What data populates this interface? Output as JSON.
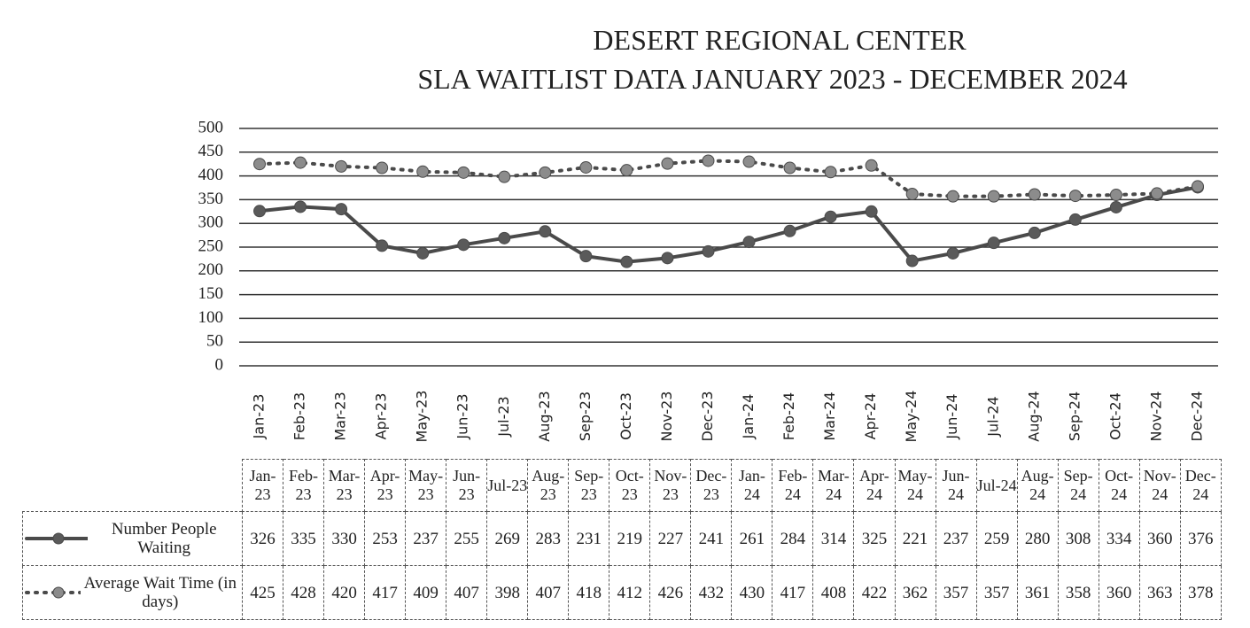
{
  "chart_data": {
    "type": "line",
    "title": "DESERT REGIONAL CENTER",
    "subtitle": "SLA WAITLIST DATA JANUARY 2023 - DECEMBER 2024",
    "categories": [
      "Jan-23",
      "Feb-23",
      "Mar-23",
      "Apr-23",
      "May-23",
      "Jun-23",
      "Jul-23",
      "Aug-23",
      "Sep-23",
      "Oct-23",
      "Nov-23",
      "Dec-23",
      "Jan-24",
      "Feb-24",
      "Mar-24",
      "Apr-24",
      "May-24",
      "Jun-24",
      "Jul-24",
      "Aug-24",
      "Sep-24",
      "Oct-24",
      "Nov-24",
      "Dec-24"
    ],
    "series": [
      {
        "name": "Number People Waiting",
        "color": "#4a4a4a",
        "marker_color": "#5a5a5a",
        "line_style": "solid",
        "values": [
          326,
          335,
          330,
          253,
          237,
          255,
          269,
          283,
          231,
          219,
          227,
          241,
          261,
          284,
          314,
          325,
          221,
          237,
          259,
          280,
          308,
          334,
          360,
          376
        ]
      },
      {
        "name": "Average Wait Time (in days)",
        "color": "#4a4a4a",
        "marker_color": "#8c8c8c",
        "line_style": "dotted",
        "values": [
          425,
          428,
          420,
          417,
          409,
          407,
          398,
          407,
          418,
          412,
          426,
          432,
          430,
          417,
          408,
          422,
          362,
          357,
          357,
          361,
          358,
          360,
          363,
          378
        ]
      }
    ],
    "ylim": [
      0,
      500
    ],
    "yticks": [
      0,
      50,
      100,
      150,
      200,
      250,
      300,
      350,
      400,
      450,
      500
    ],
    "grid": true,
    "data_table": true
  }
}
